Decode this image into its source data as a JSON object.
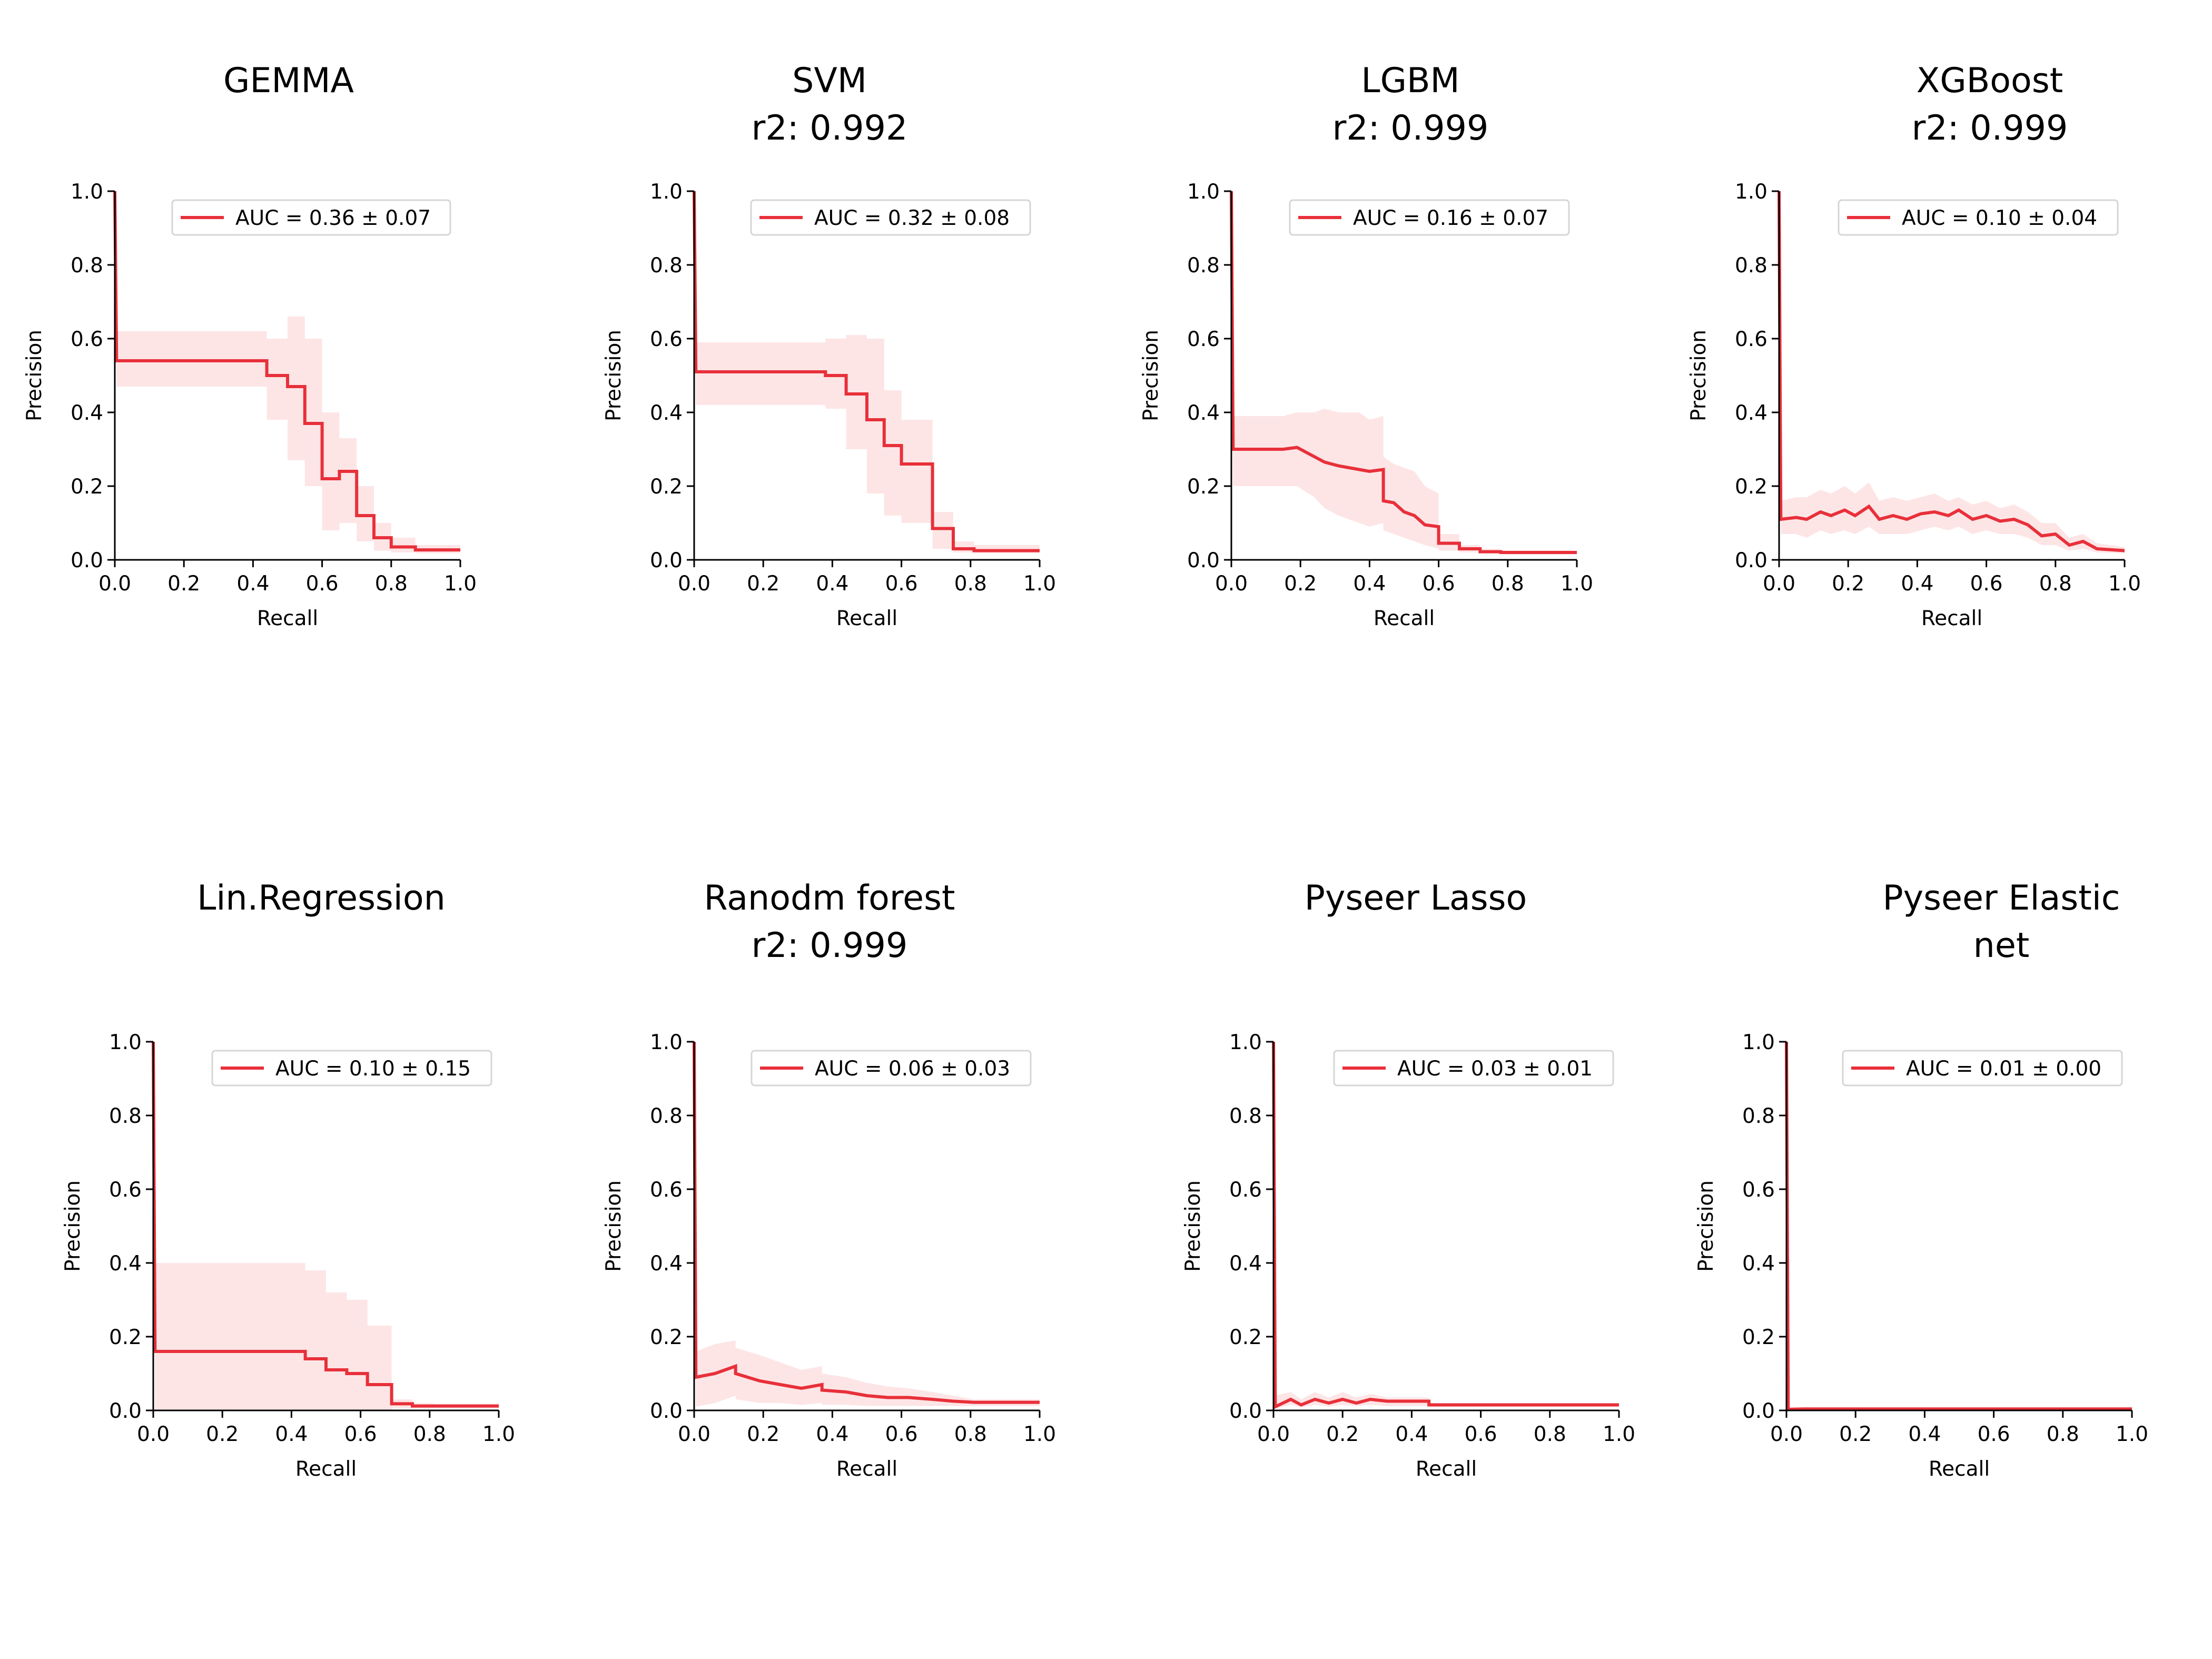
{
  "chart_data": [
    {
      "type": "line",
      "title": "GEMMA",
      "subtitle": "",
      "xlabel": "Recall",
      "ylabel": "Precision",
      "xlim": [
        0,
        1
      ],
      "ylim": [
        0,
        1
      ],
      "xticks": [
        "0.0",
        "0.2",
        "0.4",
        "0.6",
        "0.8",
        "1.0"
      ],
      "yticks": [
        "0.0",
        "0.2",
        "0.4",
        "0.6",
        "0.8",
        "1.0"
      ],
      "grid": false,
      "legend": "top-right",
      "legend_label": "AUC = 0.36 ± 0.07",
      "color": "#e8303a",
      "band_color": "#fde0e2",
      "x": [
        0,
        0.005,
        0.44,
        0.44,
        0.5,
        0.5,
        0.55,
        0.55,
        0.6,
        0.6,
        0.65,
        0.65,
        0.7,
        0.7,
        0.75,
        0.75,
        0.8,
        0.8,
        0.87,
        0.87,
        1.0
      ],
      "y": [
        1.0,
        0.54,
        0.54,
        0.5,
        0.5,
        0.47,
        0.47,
        0.37,
        0.37,
        0.22,
        0.22,
        0.24,
        0.24,
        0.12,
        0.12,
        0.06,
        0.06,
        0.035,
        0.035,
        0.027,
        0.027
      ],
      "upper": [
        1.0,
        0.62,
        0.62,
        0.6,
        0.6,
        0.66,
        0.66,
        0.6,
        0.6,
        0.4,
        0.4,
        0.33,
        0.33,
        0.2,
        0.2,
        0.1,
        0.1,
        0.06,
        0.06,
        0.04,
        0.04
      ],
      "lower": [
        1.0,
        0.47,
        0.47,
        0.38,
        0.38,
        0.27,
        0.27,
        0.2,
        0.2,
        0.08,
        0.08,
        0.1,
        0.1,
        0.05,
        0.05,
        0.025,
        0.025,
        0.02,
        0.02,
        0.018,
        0.018
      ]
    },
    {
      "type": "line",
      "title": "SVM",
      "subtitle": "r2: 0.992",
      "xlabel": "Recall",
      "ylabel": "Precision",
      "xlim": [
        0,
        1
      ],
      "ylim": [
        0,
        1
      ],
      "xticks": [
        "0.0",
        "0.2",
        "0.4",
        "0.6",
        "0.8",
        "1.0"
      ],
      "yticks": [
        "0.0",
        "0.2",
        "0.4",
        "0.6",
        "0.8",
        "1.0"
      ],
      "grid": false,
      "legend": "top-right",
      "legend_label": "AUC = 0.32 ± 0.08",
      "color": "#e8303a",
      "band_color": "#fde0e2",
      "x": [
        0,
        0.005,
        0.38,
        0.38,
        0.44,
        0.44,
        0.5,
        0.5,
        0.55,
        0.55,
        0.6,
        0.6,
        0.69,
        0.69,
        0.75,
        0.75,
        0.81,
        0.81,
        1.0
      ],
      "y": [
        1.0,
        0.51,
        0.51,
        0.5,
        0.5,
        0.45,
        0.45,
        0.38,
        0.38,
        0.31,
        0.31,
        0.26,
        0.26,
        0.085,
        0.085,
        0.03,
        0.03,
        0.025,
        0.025
      ],
      "upper": [
        1.0,
        0.59,
        0.59,
        0.6,
        0.6,
        0.61,
        0.61,
        0.6,
        0.6,
        0.46,
        0.46,
        0.38,
        0.38,
        0.13,
        0.13,
        0.05,
        0.05,
        0.04,
        0.04
      ],
      "lower": [
        1.0,
        0.42,
        0.42,
        0.41,
        0.41,
        0.3,
        0.3,
        0.18,
        0.18,
        0.12,
        0.12,
        0.1,
        0.1,
        0.03,
        0.03,
        0.02,
        0.02,
        0.018,
        0.018
      ]
    },
    {
      "type": "line",
      "title": "LGBM",
      "subtitle": "r2: 0.999",
      "xlabel": "Recall",
      "ylabel": "Precision",
      "xlim": [
        0,
        1
      ],
      "ylim": [
        0,
        1
      ],
      "xticks": [
        "0.0",
        "0.2",
        "0.4",
        "0.6",
        "0.8",
        "1.0"
      ],
      "yticks": [
        "0.0",
        "0.2",
        "0.4",
        "0.6",
        "0.8",
        "1.0"
      ],
      "grid": false,
      "legend": "top-right",
      "legend_label": "AUC = 0.16 ± 0.07",
      "color": "#e8303a",
      "band_color": "#fde0e2",
      "x": [
        0,
        0.005,
        0.15,
        0.19,
        0.24,
        0.27,
        0.31,
        0.37,
        0.4,
        0.44,
        0.44,
        0.47,
        0.5,
        0.53,
        0.56,
        0.6,
        0.6,
        0.66,
        0.66,
        0.72,
        0.72,
        0.78,
        0.78,
        1.0
      ],
      "y": [
        1.0,
        0.3,
        0.3,
        0.305,
        0.28,
        0.265,
        0.255,
        0.245,
        0.24,
        0.245,
        0.16,
        0.155,
        0.13,
        0.12,
        0.095,
        0.09,
        0.045,
        0.045,
        0.03,
        0.03,
        0.022,
        0.022,
        0.02,
        0.02
      ],
      "upper": [
        1.0,
        0.39,
        0.39,
        0.4,
        0.4,
        0.41,
        0.4,
        0.4,
        0.38,
        0.39,
        0.28,
        0.26,
        0.25,
        0.24,
        0.2,
        0.18,
        0.07,
        0.07,
        0.04,
        0.04,
        0.03,
        0.03,
        0.025,
        0.025
      ],
      "lower": [
        1.0,
        0.2,
        0.2,
        0.2,
        0.17,
        0.14,
        0.12,
        0.1,
        0.09,
        0.1,
        0.08,
        0.07,
        0.06,
        0.05,
        0.04,
        0.03,
        0.025,
        0.025,
        0.02,
        0.02,
        0.018,
        0.018,
        0.015,
        0.015
      ]
    },
    {
      "type": "line",
      "title": "XGBoost",
      "subtitle": "r2: 0.999",
      "xlabel": "Recall",
      "ylabel": "Precision",
      "xlim": [
        0,
        1
      ],
      "ylim": [
        0,
        1
      ],
      "xticks": [
        "0.0",
        "0.2",
        "0.4",
        "0.6",
        "0.8",
        "1.0"
      ],
      "yticks": [
        "0.0",
        "0.2",
        "0.4",
        "0.6",
        "0.8",
        "1.0"
      ],
      "grid": false,
      "legend": "top-right",
      "legend_label": "AUC = 0.10 ± 0.04",
      "color": "#e8303a",
      "band_color": "#fde0e2",
      "x": [
        0,
        0.005,
        0.05,
        0.08,
        0.12,
        0.15,
        0.19,
        0.22,
        0.26,
        0.29,
        0.33,
        0.37,
        0.41,
        0.45,
        0.49,
        0.52,
        0.56,
        0.6,
        0.64,
        0.68,
        0.72,
        0.76,
        0.8,
        0.84,
        0.88,
        0.92,
        1.0
      ],
      "y": [
        1.0,
        0.11,
        0.115,
        0.11,
        0.13,
        0.12,
        0.135,
        0.12,
        0.145,
        0.11,
        0.12,
        0.11,
        0.125,
        0.13,
        0.12,
        0.135,
        0.11,
        0.12,
        0.105,
        0.11,
        0.095,
        0.065,
        0.07,
        0.04,
        0.05,
        0.03,
        0.025
      ],
      "upper": [
        1.0,
        0.16,
        0.17,
        0.17,
        0.19,
        0.18,
        0.2,
        0.18,
        0.21,
        0.16,
        0.17,
        0.16,
        0.17,
        0.18,
        0.16,
        0.17,
        0.15,
        0.16,
        0.14,
        0.15,
        0.13,
        0.1,
        0.1,
        0.06,
        0.07,
        0.045,
        0.035
      ],
      "lower": [
        1.0,
        0.07,
        0.07,
        0.06,
        0.08,
        0.07,
        0.08,
        0.07,
        0.09,
        0.07,
        0.07,
        0.07,
        0.08,
        0.09,
        0.08,
        0.09,
        0.07,
        0.08,
        0.07,
        0.07,
        0.06,
        0.04,
        0.04,
        0.025,
        0.03,
        0.02,
        0.018
      ]
    },
    {
      "type": "line",
      "title": "Lin.Regression",
      "subtitle": "",
      "xlabel": "Recall",
      "ylabel": "Precision",
      "xlim": [
        0,
        1
      ],
      "ylim": [
        0,
        1
      ],
      "xticks": [
        "0.0",
        "0.2",
        "0.4",
        "0.6",
        "0.8",
        "1.0"
      ],
      "yticks": [
        "0.0",
        "0.2",
        "0.4",
        "0.6",
        "0.8",
        "1.0"
      ],
      "grid": false,
      "legend": "top-right",
      "legend_label": "AUC = 0.10 ± 0.15",
      "color": "#e8303a",
      "band_color": "#fde0e2",
      "x": [
        0,
        0.005,
        0.06,
        0.07,
        0.44,
        0.44,
        0.5,
        0.5,
        0.56,
        0.56,
        0.62,
        0.62,
        0.69,
        0.69,
        0.75,
        0.75,
        0.81,
        0.81,
        1.0
      ],
      "y": [
        1.0,
        0.16,
        0.16,
        0.16,
        0.16,
        0.14,
        0.14,
        0.11,
        0.11,
        0.1,
        0.1,
        0.07,
        0.07,
        0.018,
        0.018,
        0.012,
        0.012,
        0.012,
        0.012
      ],
      "upper": [
        1.0,
        0.4,
        0.4,
        0.4,
        0.4,
        0.38,
        0.38,
        0.32,
        0.32,
        0.3,
        0.3,
        0.23,
        0.23,
        0.03,
        0.03,
        0.02,
        0.02,
        0.018,
        0.018
      ],
      "lower": [
        1.0,
        0.0,
        0.0,
        0.0,
        0.0,
        0.0,
        0.0,
        0.0,
        0.0,
        0.0,
        0.0,
        0.0,
        0.0,
        0.005,
        0.005,
        0.005,
        0.005,
        0.005,
        0.005
      ]
    },
    {
      "type": "line",
      "title": "Ranodm forest",
      "subtitle": "r2: 0.999",
      "xlabel": "Recall",
      "ylabel": "Precision",
      "xlim": [
        0,
        1
      ],
      "ylim": [
        0,
        1
      ],
      "xticks": [
        "0.0",
        "0.2",
        "0.4",
        "0.6",
        "0.8",
        "1.0"
      ],
      "yticks": [
        "0.0",
        "0.2",
        "0.4",
        "0.6",
        "0.8",
        "1.0"
      ],
      "grid": false,
      "legend": "top-right",
      "legend_label": "AUC = 0.06 ± 0.03",
      "color": "#e8303a",
      "band_color": "#fde0e2",
      "x": [
        0,
        0.005,
        0.06,
        0.12,
        0.12,
        0.19,
        0.25,
        0.31,
        0.37,
        0.37,
        0.44,
        0.5,
        0.56,
        0.62,
        0.69,
        0.75,
        0.81,
        1.0
      ],
      "y": [
        1.0,
        0.09,
        0.1,
        0.12,
        0.1,
        0.08,
        0.07,
        0.06,
        0.07,
        0.055,
        0.05,
        0.04,
        0.035,
        0.035,
        0.03,
        0.025,
        0.022,
        0.022
      ],
      "upper": [
        1.0,
        0.16,
        0.18,
        0.19,
        0.17,
        0.15,
        0.13,
        0.11,
        0.12,
        0.1,
        0.09,
        0.075,
        0.065,
        0.06,
        0.05,
        0.04,
        0.03,
        0.03
      ],
      "lower": [
        1.0,
        0.01,
        0.02,
        0.04,
        0.03,
        0.02,
        0.02,
        0.015,
        0.02,
        0.015,
        0.015,
        0.012,
        0.012,
        0.012,
        0.012,
        0.012,
        0.012,
        0.012
      ]
    },
    {
      "type": "line",
      "title": "Pyseer Lasso",
      "subtitle": "",
      "xlabel": "Recall",
      "ylabel": "Precision",
      "xlim": [
        0,
        1
      ],
      "ylim": [
        0,
        1
      ],
      "xticks": [
        "0.0",
        "0.2",
        "0.4",
        "0.6",
        "0.8",
        "1.0"
      ],
      "yticks": [
        "0.0",
        "0.2",
        "0.4",
        "0.6",
        "0.8",
        "1.0"
      ],
      "grid": false,
      "legend": "top-right",
      "legend_label": "AUC = 0.03 ± 0.01",
      "color": "#e8303a",
      "band_color": "#fde0e2",
      "x": [
        0,
        0.005,
        0.05,
        0.08,
        0.12,
        0.16,
        0.2,
        0.24,
        0.28,
        0.33,
        0.37,
        0.41,
        0.45,
        0.45,
        0.55,
        1.0
      ],
      "y": [
        1.0,
        0.01,
        0.03,
        0.015,
        0.03,
        0.02,
        0.03,
        0.02,
        0.03,
        0.025,
        0.025,
        0.025,
        0.025,
        0.015,
        0.015,
        0.015
      ],
      "upper": [
        1.0,
        0.04,
        0.05,
        0.03,
        0.05,
        0.035,
        0.05,
        0.035,
        0.045,
        0.035,
        0.035,
        0.035,
        0.035,
        0.02,
        0.02,
        0.02
      ],
      "lower": [
        1.0,
        0.005,
        0.015,
        0.008,
        0.015,
        0.01,
        0.015,
        0.012,
        0.015,
        0.012,
        0.012,
        0.012,
        0.012,
        0.01,
        0.01,
        0.01
      ]
    },
    {
      "type": "line",
      "title": "Pyseer Elastic",
      "subtitle": "net",
      "xlabel": "Recall",
      "ylabel": "Precision",
      "xlim": [
        0,
        1
      ],
      "ylim": [
        0,
        1
      ],
      "xticks": [
        "0.0",
        "0.2",
        "0.4",
        "0.6",
        "0.8",
        "1.0"
      ],
      "yticks": [
        "0.0",
        "0.2",
        "0.4",
        "0.6",
        "0.8",
        "1.0"
      ],
      "grid": false,
      "legend": "top-right",
      "legend_label": "AUC = 0.01 ± 0.00",
      "color": "#e8303a",
      "band_color": "#fde0e2",
      "x": [
        0,
        0.005,
        0.05,
        0.1,
        1.0
      ],
      "y": [
        1.0,
        0.003,
        0.004,
        0.004,
        0.004
      ],
      "upper": [
        1.0,
        0.006,
        0.008,
        0.008,
        0.008
      ],
      "lower": [
        1.0,
        0.002,
        0.002,
        0.002,
        0.002
      ]
    }
  ]
}
